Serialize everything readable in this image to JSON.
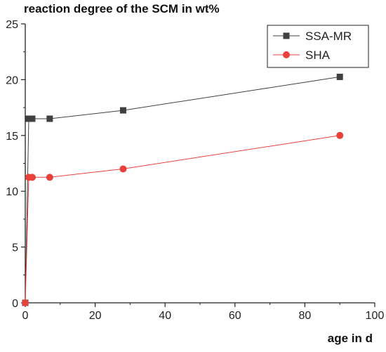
{
  "chart_data": {
    "type": "line",
    "title": "",
    "ylabel": "reaction degree of the SCM in wt%",
    "xlabel": "age in d",
    "xlim": [
      0,
      100
    ],
    "ylim": [
      0,
      25
    ],
    "xticks": [
      0,
      20,
      40,
      60,
      80,
      100
    ],
    "yticks": [
      0,
      5,
      10,
      15,
      20,
      25
    ],
    "grid": false,
    "legend_position": "top-right",
    "series": [
      {
        "name": "SSA-MR",
        "color": "#404040",
        "marker": "square",
        "x": [
          0,
          1,
          2,
          7,
          28,
          90
        ],
        "y": [
          0,
          16.5,
          16.5,
          16.5,
          17.25,
          20.25
        ]
      },
      {
        "name": "SHA",
        "color": "#e8413c",
        "marker": "circle",
        "x": [
          0,
          1,
          2,
          7,
          28,
          90
        ],
        "y": [
          0,
          11.25,
          11.25,
          11.25,
          12.0,
          15.0
        ]
      }
    ]
  }
}
